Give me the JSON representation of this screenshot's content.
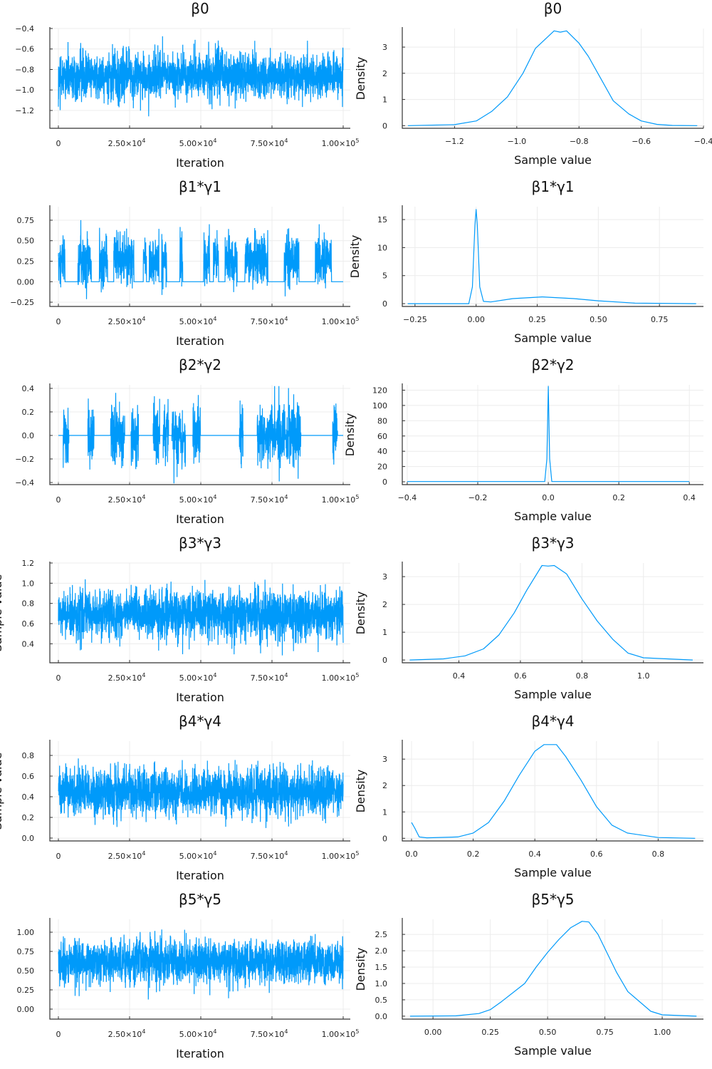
{
  "colors": {
    "series": "#009AFA",
    "axis": "#333333",
    "grid": "#ececec"
  },
  "chart_data": {
    "type": "line",
    "trace_xlabel": "Iteration",
    "trace_ylabel": "Sample value",
    "density_xlabel": "Sample value",
    "density_ylabel": "Density",
    "trace_xlim": [
      -3000,
      102500
    ],
    "trace_xticks": [
      {
        "value": 0,
        "label": "0",
        "exp": ""
      },
      {
        "value": 25000,
        "label": "2.50×10",
        "exp": "4"
      },
      {
        "value": 50000,
        "label": "5.00×10",
        "exp": "4"
      },
      {
        "value": 75000,
        "label": "7.50×10",
        "exp": "4"
      },
      {
        "value": 100000,
        "label": "1.00×10",
        "exp": "5"
      }
    ],
    "panels": [
      {
        "title": "β0",
        "trace": {
          "ylim": [
            -1.374,
            -0.4
          ],
          "yticks": [
            {
              "value": -0.4,
              "label": "−0.4"
            },
            {
              "value": -0.6,
              "label": "−0.6"
            },
            {
              "value": -0.8,
              "label": "−0.8"
            },
            {
              "value": -1.0,
              "label": "−1.0"
            },
            {
              "value": -1.2,
              "label": "−1.2"
            }
          ],
          "mean": -0.86,
          "sd": 0.11,
          "inclusion": 1.0
        },
        "density": {
          "xlim": [
            -1.368,
            -0.4
          ],
          "ylim": [
            -0.1,
            3.71
          ],
          "xticks": [
            {
              "value": -1.2,
              "label": "−1.2"
            },
            {
              "value": -1.0,
              "label": "−1.0"
            },
            {
              "value": -0.8,
              "label": "−0.8"
            },
            {
              "value": -0.6,
              "label": "−0.6"
            },
            {
              "value": -0.4,
              "label": "−0.4"
            }
          ],
          "yticks": [
            {
              "value": 0,
              "label": "0"
            },
            {
              "value": 1,
              "label": "1"
            },
            {
              "value": 2,
              "label": "2"
            },
            {
              "value": 3,
              "label": "3"
            }
          ],
          "x": [
            -1.35,
            -1.2,
            -1.13,
            -1.08,
            -1.03,
            -0.98,
            -0.94,
            -0.88,
            -0.86,
            -0.84,
            -0.8,
            -0.77,
            -0.73,
            -0.69,
            -0.64,
            -0.6,
            -0.55,
            -0.5,
            -0.42
          ],
          "y": [
            0,
            0.04,
            0.18,
            0.55,
            1.1,
            2.0,
            2.95,
            3.62,
            3.57,
            3.62,
            3.15,
            2.65,
            1.8,
            0.95,
            0.45,
            0.18,
            0.05,
            0.01,
            0
          ]
        }
      },
      {
        "title": "β1*γ1",
        "trace": {
          "ylim": [
            -0.302,
            0.915
          ],
          "yticks": [
            {
              "value": 0.75,
              "label": "0.75"
            },
            {
              "value": 0.5,
              "label": "0.50"
            },
            {
              "value": 0.25,
              "label": "0.25"
            },
            {
              "value": 0,
              "label": "0.00"
            },
            {
              "value": -0.25,
              "label": "−0.25"
            }
          ],
          "mean": 0.27,
          "sd": 0.15,
          "inclusion": 0.45
        },
        "density": {
          "xlim": [
            -0.302,
            0.93
          ],
          "ylim": [
            -0.5,
            17.3
          ],
          "xticks": [
            {
              "value": -0.25,
              "label": "−0.25"
            },
            {
              "value": 0,
              "label": "0.00"
            },
            {
              "value": 0.25,
              "label": "0.25"
            },
            {
              "value": 0.5,
              "label": "0.50"
            },
            {
              "value": 0.75,
              "label": "0.75"
            }
          ],
          "yticks": [
            {
              "value": 0,
              "label": "0"
            },
            {
              "value": 5,
              "label": "5"
            },
            {
              "value": 10,
              "label": "10"
            },
            {
              "value": 15,
              "label": "15"
            }
          ],
          "x": [
            -0.28,
            -0.03,
            -0.015,
            -0.005,
            0,
            0.005,
            0.015,
            0.03,
            0.06,
            0.15,
            0.27,
            0.4,
            0.5,
            0.65,
            0.9
          ],
          "y": [
            0,
            0,
            3,
            14,
            16.8,
            14,
            3,
            0.4,
            0.3,
            0.9,
            1.2,
            0.9,
            0.5,
            0.1,
            0
          ]
        }
      },
      {
        "title": "β2*γ2",
        "trace": {
          "ylim": [
            -0.418,
            0.43
          ],
          "yticks": [
            {
              "value": 0.4,
              "label": "0.4"
            },
            {
              "value": 0.2,
              "label": "0.2"
            },
            {
              "value": 0,
              "label": "0.0"
            },
            {
              "value": -0.2,
              "label": "−0.2"
            },
            {
              "value": -0.4,
              "label": "−0.4"
            }
          ],
          "mean": 0.0,
          "sd": 0.13,
          "inclusion": 0.4
        },
        "density": {
          "xlim": [
            -0.414,
            0.44
          ],
          "ylim": [
            -3.7,
            127
          ],
          "xticks": [
            {
              "value": -0.4,
              "label": "−0.4"
            },
            {
              "value": -0.2,
              "label": "−0.2"
            },
            {
              "value": 0,
              "label": "0.0"
            },
            {
              "value": 0.2,
              "label": "0.2"
            },
            {
              "value": 0.4,
              "label": "0.4"
            }
          ],
          "yticks": [
            {
              "value": 0,
              "label": "0"
            },
            {
              "value": 20,
              "label": "20"
            },
            {
              "value": 40,
              "label": "40"
            },
            {
              "value": 60,
              "label": "60"
            },
            {
              "value": 80,
              "label": "80"
            },
            {
              "value": 100,
              "label": "100"
            },
            {
              "value": 120,
              "label": "120"
            }
          ],
          "x": [
            -0.4,
            -0.01,
            -0.004,
            0,
            0.004,
            0.01,
            0.4
          ],
          "y": [
            0.3,
            0.3,
            30,
            125,
            30,
            0.3,
            0.3
          ]
        }
      },
      {
        "title": "β3*γ3",
        "trace": {
          "ylim": [
            0.212,
            1.2
          ],
          "yticks": [
            {
              "value": 1.2,
              "label": "1.2"
            },
            {
              "value": 1.0,
              "label": "1.0"
            },
            {
              "value": 0.8,
              "label": "0.8"
            },
            {
              "value": 0.6,
              "label": "0.6"
            },
            {
              "value": 0.4,
              "label": "0.4"
            }
          ],
          "mean": 0.69,
          "sd": 0.115,
          "inclusion": 1.0
        },
        "density": {
          "xlim": [
            0.216,
            1.195
          ],
          "ylim": [
            -0.1,
            3.49
          ],
          "xticks": [
            {
              "value": 0.4,
              "label": "0.4"
            },
            {
              "value": 0.6,
              "label": "0.6"
            },
            {
              "value": 0.8,
              "label": "0.8"
            },
            {
              "value": 1.0,
              "label": "1.0"
            }
          ],
          "yticks": [
            {
              "value": 0,
              "label": "0"
            },
            {
              "value": 1,
              "label": "1"
            },
            {
              "value": 2,
              "label": "2"
            },
            {
              "value": 3,
              "label": "3"
            }
          ],
          "x": [
            0.24,
            0.35,
            0.42,
            0.48,
            0.53,
            0.58,
            0.62,
            0.67,
            0.69,
            0.71,
            0.75,
            0.8,
            0.85,
            0.9,
            0.95,
            1.0,
            1.16
          ],
          "y": [
            0,
            0.04,
            0.15,
            0.4,
            0.9,
            1.7,
            2.5,
            3.4,
            3.38,
            3.4,
            3.1,
            2.2,
            1.4,
            0.75,
            0.25,
            0.08,
            0
          ]
        }
      },
      {
        "title": "β4*γ4",
        "trace": {
          "ylim": [
            -0.028,
            0.938
          ],
          "yticks": [
            {
              "value": 0.8,
              "label": "0.8"
            },
            {
              "value": 0.6,
              "label": "0.6"
            },
            {
              "value": 0.4,
              "label": "0.4"
            },
            {
              "value": 0.2,
              "label": "0.2"
            },
            {
              "value": 0,
              "label": "0.0"
            }
          ],
          "mean": 0.45,
          "sd": 0.11,
          "inclusion": 0.99
        },
        "density": {
          "xlim": [
            -0.03,
            0.947
          ],
          "ylim": [
            -0.1,
            3.68
          ],
          "xticks": [
            {
              "value": 0,
              "label": "0.0"
            },
            {
              "value": 0.2,
              "label": "0.2"
            },
            {
              "value": 0.4,
              "label": "0.4"
            },
            {
              "value": 0.6,
              "label": "0.6"
            },
            {
              "value": 0.8,
              "label": "0.8"
            }
          ],
          "yticks": [
            {
              "value": 0,
              "label": "0"
            },
            {
              "value": 1,
              "label": "1"
            },
            {
              "value": 2,
              "label": "2"
            },
            {
              "value": 3,
              "label": "3"
            }
          ],
          "x": [
            0.0,
            0.01,
            0.025,
            0.05,
            0.15,
            0.2,
            0.25,
            0.3,
            0.35,
            0.4,
            0.43,
            0.47,
            0.5,
            0.55,
            0.6,
            0.65,
            0.7,
            0.8,
            0.92
          ],
          "y": [
            0.6,
            0.4,
            0.05,
            0.02,
            0.05,
            0.2,
            0.6,
            1.4,
            2.4,
            3.3,
            3.55,
            3.55,
            3.1,
            2.2,
            1.2,
            0.5,
            0.2,
            0.03,
            0
          ]
        }
      },
      {
        "title": "β5*γ5",
        "trace": {
          "ylim": [
            -0.13,
            1.167
          ],
          "yticks": [
            {
              "value": 1.0,
              "label": "1.00"
            },
            {
              "value": 0.75,
              "label": "0.75"
            },
            {
              "value": 0.5,
              "label": "0.50"
            },
            {
              "value": 0.25,
              "label": "0.25"
            },
            {
              "value": 0,
              "label": "0.00"
            }
          ],
          "mean": 0.62,
          "sd": 0.14,
          "inclusion": 1.0
        },
        "density": {
          "xlim": [
            -0.134,
            1.18
          ],
          "ylim": [
            -0.09,
            2.96
          ],
          "xticks": [
            {
              "value": 0,
              "label": "0.00"
            },
            {
              "value": 0.25,
              "label": "0.25"
            },
            {
              "value": 0.5,
              "label": "0.50"
            },
            {
              "value": 0.75,
              "label": "0.75"
            },
            {
              "value": 1.0,
              "label": "1.00"
            }
          ],
          "yticks": [
            {
              "value": 0,
              "label": "0.0"
            },
            {
              "value": 0.5,
              "label": "0.5"
            },
            {
              "value": 1.0,
              "label": "1.0"
            },
            {
              "value": 1.5,
              "label": "1.5"
            },
            {
              "value": 2.0,
              "label": "2.0"
            },
            {
              "value": 2.5,
              "label": "2.5"
            }
          ],
          "x": [
            -0.1,
            0.1,
            0.2,
            0.25,
            0.3,
            0.4,
            0.45,
            0.5,
            0.55,
            0.6,
            0.65,
            0.68,
            0.72,
            0.8,
            0.85,
            0.95,
            1.0,
            1.15
          ],
          "y": [
            0,
            0.01,
            0.08,
            0.2,
            0.45,
            1.0,
            1.5,
            1.95,
            2.35,
            2.7,
            2.9,
            2.88,
            2.5,
            1.35,
            0.75,
            0.15,
            0.04,
            0
          ]
        }
      }
    ]
  }
}
